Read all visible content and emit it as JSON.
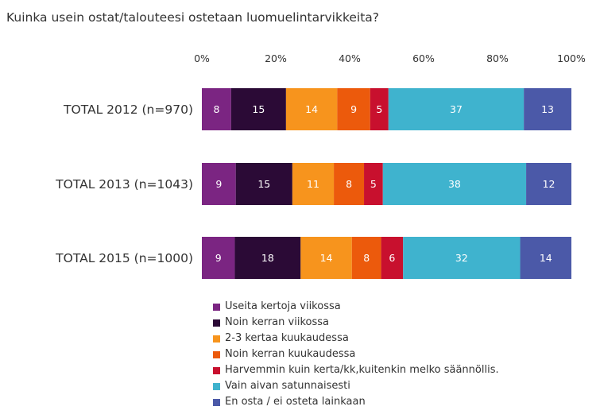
{
  "chart_data": {
    "type": "bar",
    "orientation": "horizontal",
    "stacked": true,
    "title": "Kuinka usein ostat/talouteesi ostetaan luomuelintarvikkeita?",
    "xlim": [
      0,
      100
    ],
    "ticks": [
      "0%",
      "20%",
      "40%",
      "60%",
      "80%",
      "100%"
    ],
    "categories": [
      "TOTAL 2012 (n=970)",
      "TOTAL 2013 (n=1043)",
      "TOTAL 2015 (n=1000)"
    ],
    "legend_position": "bottom",
    "series": [
      {
        "name": "Useita kertoja viikossa",
        "color": "#7b2582",
        "label_color": "#ffffff",
        "values": [
          8,
          9,
          9
        ]
      },
      {
        "name": "Noin kerran viikossa",
        "color": "#2b0a36",
        "label_color": "#ffffff",
        "values": [
          15,
          15,
          18
        ]
      },
      {
        "name": "2-3 kertaa kuukaudessa",
        "color": "#f7941d",
        "label_color": "#ffffff",
        "values": [
          14,
          11,
          14
        ]
      },
      {
        "name": "Noin kerran kuukaudessa",
        "color": "#ec5a0c",
        "label_color": "#ffffff",
        "values": [
          9,
          8,
          8
        ]
      },
      {
        "name": "Harvemmin kuin kerta/kk,kuitenkin melko säännöllis.",
        "color": "#c8102e",
        "label_color": "#ffffff",
        "values": [
          5,
          5,
          6
        ]
      },
      {
        "name": "Vain aivan satunnaisesti",
        "color": "#3fb3ce",
        "label_color": "#ffffff",
        "values": [
          37,
          38,
          32
        ]
      },
      {
        "name": "En osta / ei osteta lainkaan",
        "color": "#4b59a8",
        "label_color": "#ffffff",
        "values": [
          13,
          12,
          14
        ]
      }
    ]
  }
}
